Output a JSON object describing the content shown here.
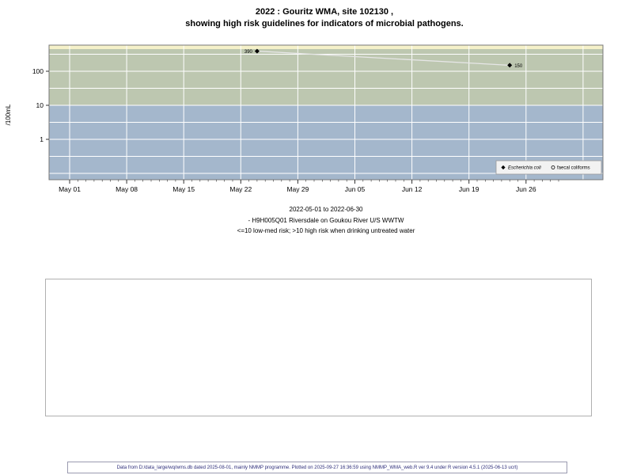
{
  "title": {
    "line1": "2022 : Gouritz WMA, site 102130 ,",
    "line2": "showing high risk guidelines for indicators of microbial pathogens."
  },
  "chart_data": {
    "type": "scatter",
    "ylabel": "/100mL",
    "y_scale": "log",
    "y_tick_values": [
      1,
      10,
      100
    ],
    "y_tick_labels": [
      "1",
      "10",
      "100"
    ],
    "x_tick_labels": [
      "May 01",
      "May 08",
      "May 15",
      "May 22",
      "May 29",
      "Jun 05",
      "Jun 12",
      "Jun 19",
      "Jun 26"
    ],
    "x_week_days": [
      0,
      7,
      14,
      21,
      28,
      35,
      42,
      49,
      56
    ],
    "x_total_days": 60,
    "risk_threshold": 10,
    "series": [
      {
        "name": "Escherichia coli",
        "marker": "diamond",
        "points": [
          {
            "x_day": 23,
            "value": 390,
            "label": "390",
            "label_side": "left"
          },
          {
            "x_day": 54,
            "value": 150,
            "label": "150",
            "label_side": "right"
          }
        ]
      },
      {
        "name": "faecal coliforms",
        "marker": "circle",
        "points": []
      }
    ],
    "legend_items": [
      {
        "marker": "diamond",
        "label": "Escherichia coli",
        "italic": true
      },
      {
        "marker": "circle",
        "label": "faecal coliforms",
        "italic": false
      }
    ],
    "colors": {
      "high_risk_band": "#bdc7b0",
      "low_risk_band": "#a4b7cc",
      "top_band": "#f5f1c9",
      "gridline": "#ffffff",
      "point": "#000000",
      "connect_line": "#e6e6e6",
      "axis": "#333333",
      "plot_border": "#777777"
    }
  },
  "caption": {
    "line1": "2022-05-01 to 2022-06-30",
    "line2": "- H9H005Q01 Riversdale on Goukou River U/S WWTW",
    "line3": "<=10 low-med risk; >10 high risk when drinking untreated water"
  },
  "footer": {
    "text": "Data from D:/data_large/wq/wms.db dated 2025-08-01, mainly NMMP programme. Plotted on 2025-09-27 16:36:59 using NMMP_WMA_web.R ver 9.4 under R version 4.5.1 (2025-06-13 ucrt)"
  }
}
